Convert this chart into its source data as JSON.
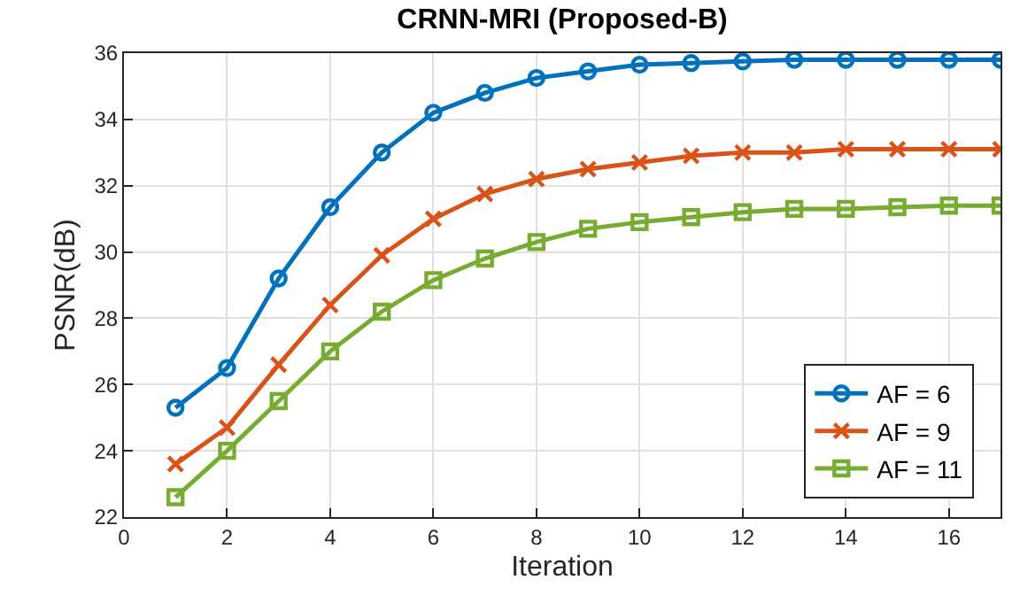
{
  "chart_data": {
    "type": "line",
    "title": "CRNN-MRI (Proposed-B)",
    "xlabel": "Iteration",
    "ylabel": "PSNR(dB)",
    "x": [
      1,
      2,
      3,
      4,
      5,
      6,
      7,
      8,
      9,
      10,
      11,
      12,
      13,
      14,
      15,
      16,
      17
    ],
    "series": [
      {
        "name": "AF = 6",
        "color": "#0072bd",
        "marker": "circle",
        "values": [
          25.3,
          26.5,
          29.2,
          31.35,
          33.0,
          34.2,
          34.8,
          35.25,
          35.45,
          35.65,
          35.7,
          35.75,
          35.8,
          35.8,
          35.8,
          35.8,
          35.8
        ]
      },
      {
        "name": "AF = 9",
        "color": "#d95319",
        "marker": "cross",
        "values": [
          23.6,
          24.7,
          26.6,
          28.4,
          29.9,
          31.0,
          31.75,
          32.2,
          32.5,
          32.7,
          32.9,
          33.0,
          33.0,
          33.1,
          33.1,
          33.1,
          33.1
        ]
      },
      {
        "name": "AF = 11",
        "color": "#77ac30",
        "marker": "square",
        "values": [
          22.6,
          24.0,
          25.5,
          27.0,
          28.2,
          29.15,
          29.8,
          30.3,
          30.7,
          30.9,
          31.05,
          31.2,
          31.3,
          31.3,
          31.35,
          31.4,
          31.4
        ]
      }
    ],
    "xlim": [
      0,
      17
    ],
    "xticks": [
      0,
      2,
      4,
      6,
      8,
      10,
      12,
      14,
      16
    ],
    "ylim": [
      22,
      36
    ],
    "yticks": [
      22,
      24,
      26,
      28,
      30,
      32,
      34,
      36
    ],
    "grid": true,
    "legend": "bottom right",
    "line_style": "solid"
  }
}
